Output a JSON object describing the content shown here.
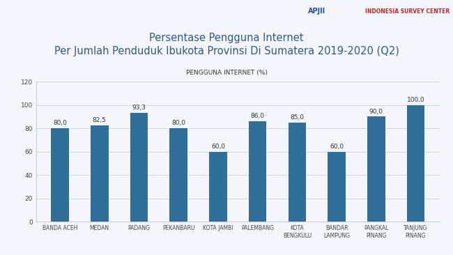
{
  "chart_data": {
    "type": "bar",
    "title": "Persentase Pengguna Internet\nPer Jumlah Penduduk Ibukota Provinsi Di Sumatera 2019-2020 (Q2)",
    "subtitle": "PENGGUNA INTERNET (%)",
    "annotations": [
      "APJII",
      "INDONESIA SURVEY CENTER"
    ],
    "categories": [
      "BANDA ACEH",
      "MEDAN",
      "PADANG",
      "PEKANBARU",
      "KOTA JAMBI",
      "PALEMBANG",
      "KOTA BENGKULU",
      "BANDAR LAMPUNG",
      "PANGKAL PINANG",
      "TANJUNG PINANG"
    ],
    "values": [
      80,
      82.5,
      93.3,
      80,
      60,
      86,
      85,
      60,
      90,
      100
    ],
    "value_labels": [
      "80,0",
      "82,5",
      "93,3",
      "80,0",
      "60,0",
      "86,0",
      "85,0",
      "60,0",
      "90,0",
      "100,0"
    ],
    "data_labels": true,
    "color": "#2f6f9a",
    "ylim": [
      0,
      120
    ],
    "yticks": [
      0,
      20,
      40,
      60,
      80,
      100,
      120
    ],
    "grid": true
  }
}
